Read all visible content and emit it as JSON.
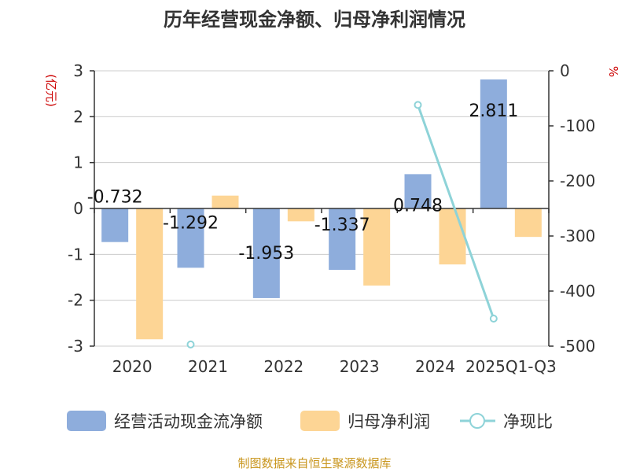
{
  "chart_data": {
    "type": "bar",
    "title": "历年经营现金净额、归母净利润情况",
    "categories": [
      "2020",
      "2021",
      "2022",
      "2023",
      "2024",
      "2025Q1-Q3"
    ],
    "series": [
      {
        "name": "经营活动现金流净额",
        "type": "bar",
        "axis": "left",
        "color": "#8eaddc",
        "values": [
          -0.732,
          -1.292,
          -1.953,
          -1.337,
          0.748,
          2.811
        ],
        "labels": [
          "-0.732",
          "-1.292",
          "-1.953",
          "-1.337",
          "0.748",
          "2.811"
        ]
      },
      {
        "name": "归母净利润",
        "type": "bar",
        "axis": "left",
        "color": "#fdd595",
        "values": [
          -2.85,
          0.28,
          -0.28,
          -1.68,
          -1.22,
          -0.62
        ]
      },
      {
        "name": "净现比",
        "type": "line",
        "axis": "right",
        "color": "#8ed3d8",
        "values": [
          null,
          -497,
          null,
          null,
          -62,
          -450
        ]
      }
    ],
    "left_axis": {
      "unit": "(亿元)",
      "min": -3,
      "max": 3,
      "ticks": [
        3,
        2,
        1,
        0,
        -1,
        -2,
        -3
      ],
      "tick_labels": [
        "3",
        "2",
        "1",
        "0",
        "-1",
        "-2",
        "-3"
      ]
    },
    "right_axis": {
      "unit": "%",
      "min": -500,
      "max": 0,
      "ticks": [
        0,
        -100,
        -200,
        -300,
        -400,
        -500
      ],
      "tick_labels": [
        "0",
        "-100",
        "-200",
        "-300",
        "-400",
        "-500"
      ]
    },
    "grid": true,
    "legend_position": "bottom",
    "source": "制图数据来自恒生聚源数据库",
    "colors": {
      "axis_unit": "#cc0000",
      "source": "#c9961e",
      "grid": "#cccccc",
      "axis": "#333333"
    }
  }
}
